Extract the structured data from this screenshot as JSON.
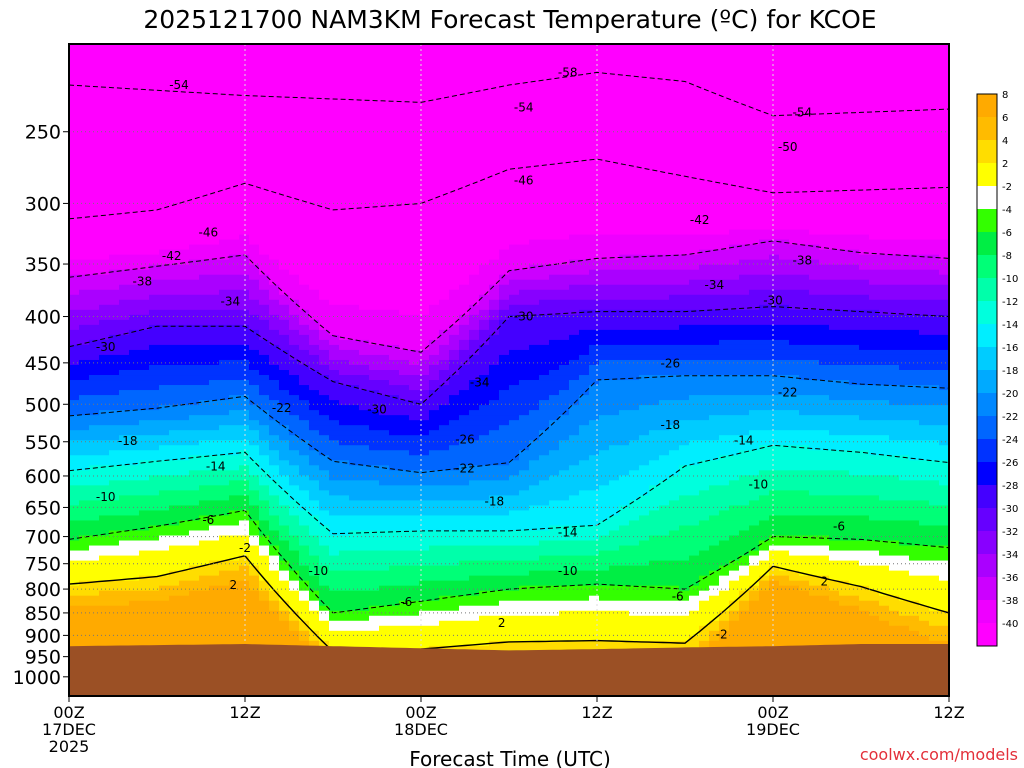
{
  "chart_data": {
    "type": "heatmap",
    "title": "2025121700 NAM3KM Forecast Temperature (ºC) for KCOE",
    "xlabel": "Forecast Time (UTC)",
    "ylabel": "",
    "credit": "coolwx.com/models",
    "x_range_hours": [
      0,
      60
    ],
    "y_range_hpa": [
      200,
      1050
    ],
    "y_scale": "log",
    "grid": true,
    "legend_placement": "right",
    "x_ticks": [
      {
        "hour": 0,
        "line1": "00Z",
        "line2": "17DEC",
        "line3": "2025"
      },
      {
        "hour": 12,
        "line1": "12Z",
        "line2": "",
        "line3": ""
      },
      {
        "hour": 24,
        "line1": "00Z",
        "line2": "18DEC",
        "line3": ""
      },
      {
        "hour": 36,
        "line1": "12Z",
        "line2": "",
        "line3": ""
      },
      {
        "hour": 48,
        "line1": "00Z",
        "line2": "19DEC",
        "line3": ""
      },
      {
        "hour": 60,
        "line1": "12Z",
        "line2": "",
        "line3": ""
      }
    ],
    "y_ticks": [
      250,
      300,
      350,
      400,
      450,
      500,
      550,
      600,
      650,
      700,
      750,
      800,
      850,
      900,
      950,
      1000
    ],
    "levels": [
      -40,
      -38,
      -36,
      -34,
      -32,
      -30,
      -28,
      -26,
      -24,
      -22,
      -20,
      -18,
      -16,
      -14,
      -12,
      -10,
      -8,
      -6,
      -4,
      -2,
      2,
      4,
      6,
      8
    ],
    "colors": [
      "#ff00ff",
      "#ee00ff",
      "#cc00ff",
      "#aa00ff",
      "#8800ff",
      "#6600ff",
      "#4400ff",
      "#0000ff",
      "#0033ff",
      "#0066ff",
      "#0088ff",
      "#00aaff",
      "#00ccff",
      "#00eeff",
      "#00ffdd",
      "#00ffaa",
      "#00ff77",
      "#00ee44",
      "#33ff00",
      "#ffffff",
      "#ffff00",
      "#ffdd00",
      "#ffbb00",
      "#ffaa00"
    ],
    "terrain_color": "#9b5025",
    "isotherm_hpa": {
      "hours": [
        0,
        6,
        12,
        18,
        24,
        30,
        36,
        42,
        48,
        54,
        60
      ],
      "series": [
        {
          "temp": -54,
          "values": [
            222,
            225,
            228,
            230,
            232,
            222,
            215,
            220,
            240,
            238,
            236
          ]
        },
        {
          "temp": -46,
          "values": [
            312,
            305,
            285,
            305,
            300,
            275,
            268,
            280,
            292,
            290,
            288
          ]
        },
        {
          "temp": -38,
          "values": [
            362,
            352,
            342,
            420,
            438,
            356,
            345,
            342,
            330,
            340,
            345
          ]
        },
        {
          "temp": -30,
          "values": [
            432,
            410,
            410,
            472,
            500,
            400,
            395,
            395,
            390,
            395,
            400
          ]
        },
        {
          "temp": -22,
          "values": [
            515,
            505,
            490,
            578,
            595,
            580,
            470,
            465,
            465,
            475,
            480
          ]
        },
        {
          "temp": -14,
          "values": [
            592,
            578,
            565,
            695,
            690,
            690,
            680,
            585,
            555,
            565,
            580
          ]
        },
        {
          "temp": -6,
          "values": [
            705,
            682,
            655,
            850,
            825,
            800,
            790,
            800,
            700,
            705,
            720
          ]
        },
        {
          "temp": 2,
          "values": [
            790,
            775,
            735,
            938,
            932,
            915,
            912,
            918,
            755,
            795,
            850
          ]
        }
      ],
      "inline_labels": [
        {
          "text": "-54",
          "hour": 7.5,
          "hpa": 222
        },
        {
          "text": "-58",
          "hour": 34,
          "hpa": 215
        },
        {
          "text": "-54",
          "hour": 31,
          "hpa": 235
        },
        {
          "text": "-54",
          "hour": 50,
          "hpa": 238
        },
        {
          "text": "-50",
          "hour": 49,
          "hpa": 260
        },
        {
          "text": "-46",
          "hour": 31,
          "hpa": 283
        },
        {
          "text": "-46",
          "hour": 9.5,
          "hpa": 323
        },
        {
          "text": "-42",
          "hour": 7.0,
          "hpa": 343
        },
        {
          "text": "-42",
          "hour": 43,
          "hpa": 313
        },
        {
          "text": "-38",
          "hour": 5.0,
          "hpa": 366
        },
        {
          "text": "-38",
          "hour": 50,
          "hpa": 347
        },
        {
          "text": "-34",
          "hour": 11,
          "hpa": 385
        },
        {
          "text": "-34",
          "hour": 28,
          "hpa": 473
        },
        {
          "text": "-34",
          "hour": 44,
          "hpa": 369
        },
        {
          "text": "-30",
          "hour": 2.5,
          "hpa": 432
        },
        {
          "text": "-30",
          "hour": 21,
          "hpa": 507
        },
        {
          "text": "-30",
          "hour": 31,
          "hpa": 400
        },
        {
          "text": "-30",
          "hour": 48,
          "hpa": 384
        },
        {
          "text": "-26",
          "hour": 27,
          "hpa": 547
        },
        {
          "text": "-26",
          "hour": 41,
          "hpa": 451
        },
        {
          "text": "-22",
          "hour": 14.5,
          "hpa": 505
        },
        {
          "text": "-22",
          "hour": 27,
          "hpa": 589
        },
        {
          "text": "-22",
          "hour": 49,
          "hpa": 485
        },
        {
          "text": "-18",
          "hour": 4.0,
          "hpa": 549
        },
        {
          "text": "-18",
          "hour": 29,
          "hpa": 640
        },
        {
          "text": "-18",
          "hour": 41,
          "hpa": 527
        },
        {
          "text": "-14",
          "hour": 10,
          "hpa": 586
        },
        {
          "text": "-14",
          "hour": 34,
          "hpa": 693
        },
        {
          "text": "-14",
          "hour": 46,
          "hpa": 548
        },
        {
          "text": "-10",
          "hour": 2.5,
          "hpa": 633
        },
        {
          "text": "-10",
          "hour": 17,
          "hpa": 764
        },
        {
          "text": "-10",
          "hour": 34,
          "hpa": 764
        },
        {
          "text": "-10",
          "hour": 47,
          "hpa": 613
        },
        {
          "text": "-6",
          "hour": 9.5,
          "hpa": 671
        },
        {
          "text": "-6",
          "hour": 23,
          "hpa": 827
        },
        {
          "text": "-6",
          "hour": 41.5,
          "hpa": 815
        },
        {
          "text": "-6",
          "hour": 52.5,
          "hpa": 682
        },
        {
          "text": "-2",
          "hour": 12,
          "hpa": 721
        },
        {
          "text": "2",
          "hour": 11.2,
          "hpa": 792
        },
        {
          "text": "2",
          "hour": 29.5,
          "hpa": 872
        },
        {
          "text": "-2",
          "hour": 44.5,
          "hpa": 898
        },
        {
          "text": "2",
          "hour": 51.5,
          "hpa": 785
        }
      ]
    },
    "ground_hpa": {
      "hours": [
        0,
        12,
        18,
        24,
        30,
        36,
        42,
        48,
        54,
        60
      ],
      "values": [
        925,
        920,
        925,
        930,
        935,
        932,
        928,
        925,
        920,
        920
      ]
    }
  }
}
